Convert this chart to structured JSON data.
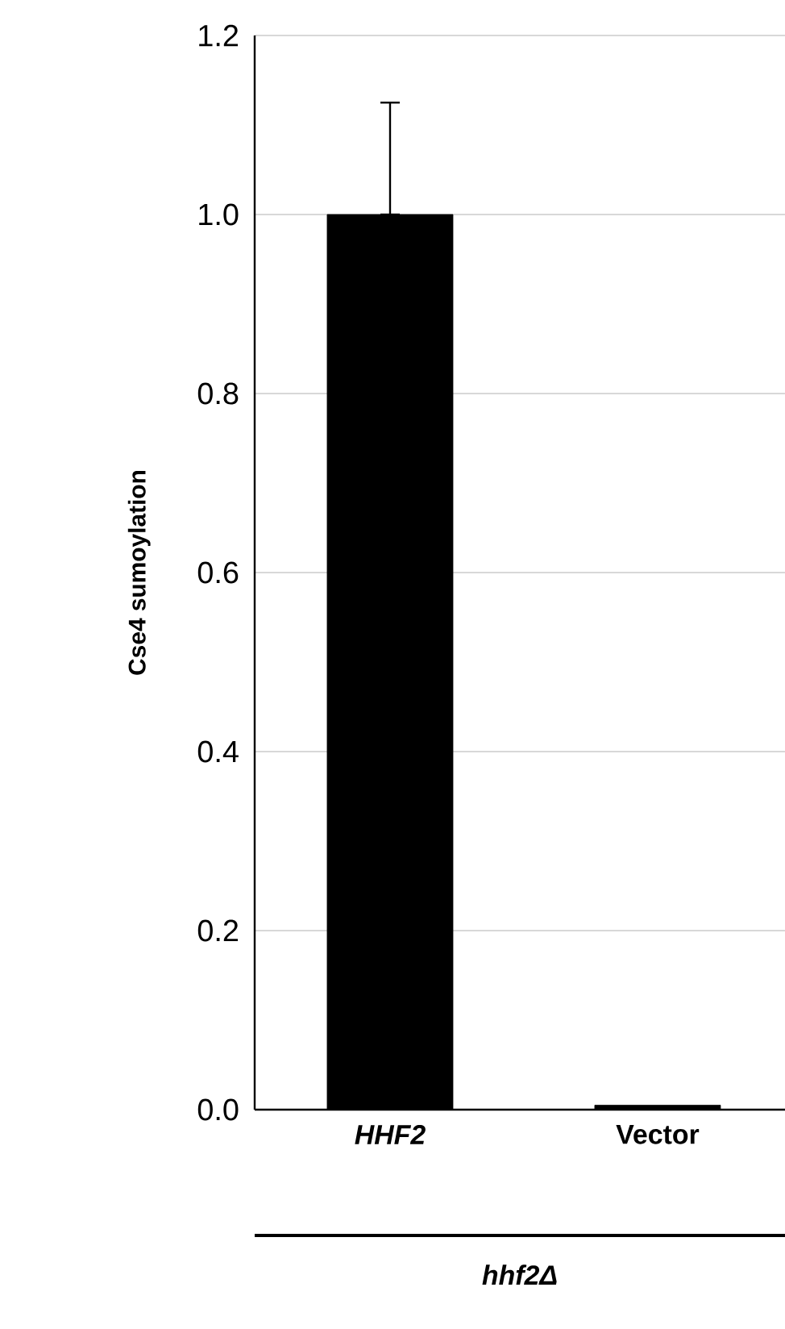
{
  "chart_data": {
    "type": "bar",
    "ylabel": "Cse4 sumoylation",
    "xlabel": "hhf2Δ",
    "categories": [
      "*HHF2*",
      "Vector"
    ],
    "values": [
      1.0,
      0.005
    ],
    "color": "#000000",
    "errors": [
      [
        1.0,
        1.125
      ],
      null
    ],
    "ylim": [
      0,
      1.2
    ],
    "yticks": [
      {
        "value": 0,
        "label": "0.0"
      },
      {
        "value": 0.2,
        "label": "0.2"
      },
      {
        "value": 0.4,
        "label": "0.4"
      },
      {
        "value": 0.6,
        "label": "0.6"
      },
      {
        "value": 0.8,
        "label": "0.8"
      },
      {
        "value": 1.0,
        "label": "1.0"
      },
      {
        "value": 1.2,
        "label": "1.2"
      }
    ],
    "grid": "y"
  }
}
